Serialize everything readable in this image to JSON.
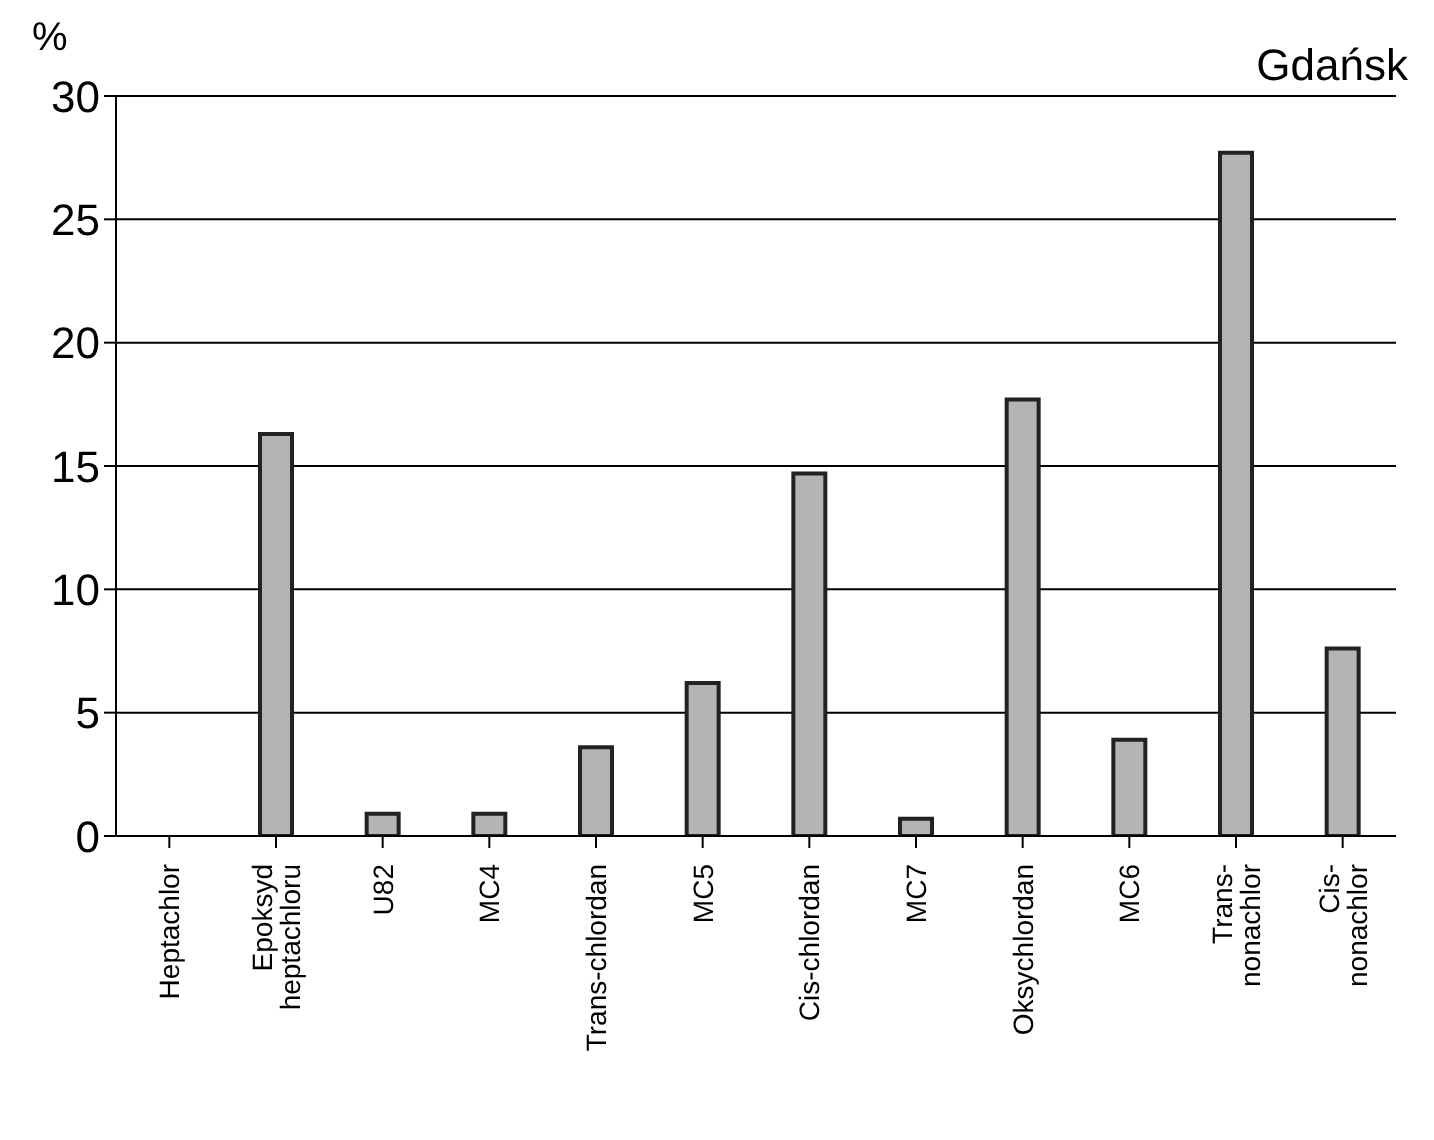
{
  "chart_data": {
    "type": "bar",
    "title": "Gdańsk",
    "ylabel": "%",
    "categories": [
      "Heptachlor",
      "Epoksyd\nheptachloru",
      "U82",
      "MC4",
      "Trans-chlordan",
      "MC5",
      "Cis-chlordan",
      "MC7",
      "Oksychlordan",
      "MC6",
      "Trans-\nnonachlor",
      "Cis-\nnonachlor"
    ],
    "values": [
      0,
      16.3,
      0.9,
      0.9,
      3.6,
      6.2,
      14.7,
      0.7,
      17.7,
      3.9,
      27.7,
      7.6
    ],
    "color": "#b4b4b4",
    "ylim": [
      0,
      30
    ],
    "yticks": [
      0,
      5,
      10,
      15,
      20,
      25,
      30
    ],
    "grid": "y"
  }
}
